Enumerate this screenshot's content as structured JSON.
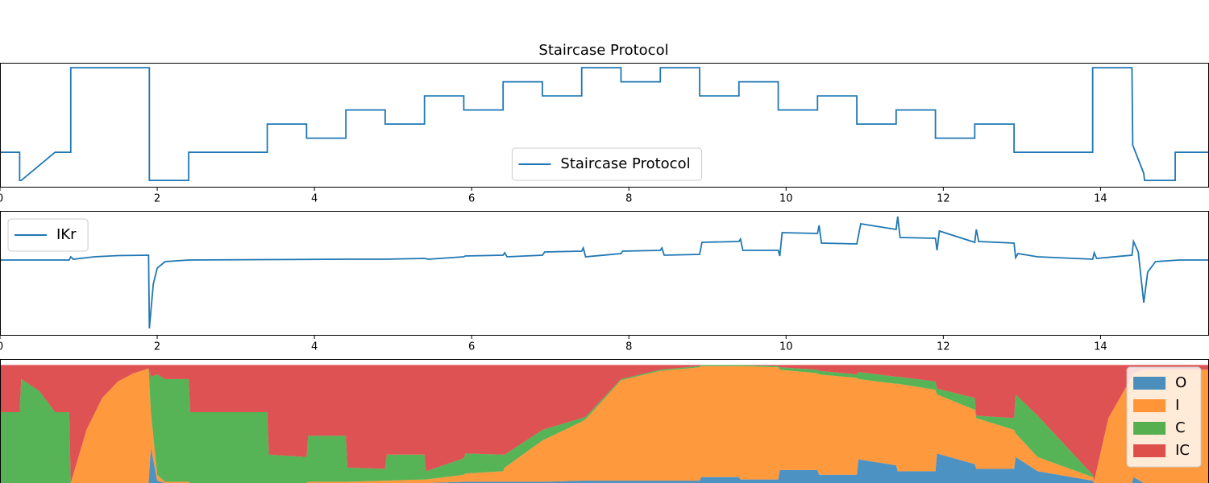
{
  "chart_data": [
    {
      "type": "line",
      "title": "Staircase Protocol",
      "legend": "lower center",
      "xlim": [
        0,
        15.38
      ],
      "ylim": [
        -129,
        47
      ],
      "xticks": [
        0,
        2,
        4,
        6,
        8,
        10,
        12,
        14
      ],
      "x": [
        0,
        0.25,
        0.25,
        0.27,
        0.7,
        0.9,
        0.9,
        1.9,
        1.9,
        2.4,
        2.4,
        3.4,
        3.4,
        3.9,
        3.9,
        4.4,
        4.4,
        4.9,
        4.9,
        5.4,
        5.4,
        5.9,
        5.9,
        6.4,
        6.4,
        6.9,
        6.9,
        7.4,
        7.4,
        7.9,
        7.9,
        8.4,
        8.4,
        8.9,
        8.9,
        9.4,
        9.4,
        9.9,
        9.9,
        10.4,
        10.4,
        10.9,
        10.9,
        11.4,
        11.4,
        11.9,
        11.9,
        12.4,
        12.4,
        12.9,
        12.9,
        13.9,
        13.9,
        14.4,
        14.41,
        14.55,
        14.56,
        14.95,
        14.95,
        15.38
      ],
      "series": [
        {
          "name": "Staircase Protocol",
          "color": "#1f77b4",
          "values": [
            -80,
            -80,
            -120,
            -120,
            -80,
            -80,
            40,
            40,
            -120,
            -120,
            -80,
            -80,
            -40,
            -40,
            -60,
            -60,
            -20,
            -20,
            -40,
            -40,
            0,
            0,
            -20,
            -20,
            20,
            20,
            0,
            0,
            40,
            40,
            20,
            20,
            40,
            40,
            0,
            0,
            20,
            20,
            -20,
            -20,
            0,
            0,
            -40,
            -40,
            -20,
            -20,
            -60,
            -60,
            -40,
            -40,
            -80,
            -80,
            40,
            40,
            -70,
            -110,
            -120,
            -120,
            -80,
            -80
          ]
        }
      ]
    },
    {
      "type": "line",
      "legend": "upper left",
      "xlim": [
        0,
        15.38
      ],
      "ylim": [
        -0.93,
        0.61
      ],
      "xticks": [
        0,
        2,
        4,
        6,
        8,
        10,
        12,
        14
      ],
      "x": [
        0,
        0.88,
        0.9,
        0.93,
        1.2,
        1.5,
        1.89,
        1.9,
        1.95,
        2.0,
        2.1,
        2.4,
        4.4,
        4.9,
        5.4,
        5.45,
        5.9,
        5.92,
        6.4,
        6.42,
        6.45,
        6.9,
        6.93,
        7.4,
        7.42,
        7.45,
        7.9,
        7.92,
        8.4,
        8.42,
        8.45,
        8.9,
        8.93,
        9.4,
        9.42,
        9.45,
        9.9,
        9.92,
        9.95,
        10.4,
        10.42,
        10.45,
        10.9,
        10.95,
        11.4,
        11.42,
        11.45,
        11.9,
        11.92,
        11.95,
        12.4,
        12.42,
        12.45,
        12.9,
        12.92,
        12.95,
        13.2,
        13.9,
        13.92,
        13.95,
        14.4,
        14.42,
        14.48,
        14.55,
        14.6,
        14.7,
        15.0,
        15.38
      ],
      "series": [
        {
          "name": "IKr",
          "color": "#1f77b4",
          "values": [
            0,
            0,
            0.04,
            0.01,
            0.04,
            0.055,
            0.06,
            -0.85,
            -0.3,
            -0.1,
            -0.02,
            0,
            0.01,
            0.01,
            0.02,
            0.01,
            0.04,
            0.05,
            0.06,
            0.09,
            0.04,
            0.06,
            0.1,
            0.11,
            0.15,
            0.04,
            0.08,
            0.11,
            0.12,
            0.15,
            0.06,
            0.07,
            0.22,
            0.23,
            0.26,
            0.12,
            0.12,
            0.05,
            0.34,
            0.33,
            0.43,
            0.21,
            0.2,
            0.45,
            0.38,
            0.54,
            0.28,
            0.27,
            0.12,
            0.36,
            0.22,
            0.38,
            0.23,
            0.21,
            0.03,
            0.08,
            0.04,
            0.01,
            0.09,
            0.02,
            0.06,
            0.23,
            0.1,
            -0.53,
            -0.15,
            -0.02,
            0,
            0
          ]
        }
      ]
    },
    {
      "type": "stackplot",
      "legend": "upper right",
      "alpha": 0.8,
      "xlim": [
        0,
        15.38
      ],
      "ylim": [
        0,
        1.05
      ],
      "x": [
        0,
        0.25,
        0.27,
        0.5,
        0.7,
        0.88,
        0.9,
        1.1,
        1.3,
        1.5,
        1.7,
        1.89,
        1.92,
        2.0,
        2.1,
        2.4,
        2.42,
        3.4,
        3.42,
        3.9,
        3.92,
        4.4,
        4.42,
        4.9,
        4.92,
        5.4,
        5.42,
        5.9,
        5.92,
        6.4,
        6.42,
        6.9,
        7.4,
        7.45,
        7.9,
        8.4,
        8.9,
        8.92,
        9.4,
        9.42,
        9.9,
        9.92,
        10.4,
        10.42,
        10.9,
        10.92,
        11.4,
        11.42,
        11.9,
        11.92,
        12.4,
        12.42,
        12.9,
        12.92,
        13.2,
        13.9,
        13.92,
        14.1,
        14.4,
        14.42,
        14.55,
        15.38
      ],
      "series": [
        {
          "name": "O",
          "color": "#1f77b4",
          "values": [
            0,
            0,
            0,
            0,
            0,
            0,
            0,
            0,
            0,
            0,
            0,
            0,
            0.3,
            0.02,
            0,
            0,
            0,
            0,
            0,
            0,
            0,
            0,
            0,
            0,
            0,
            0,
            0,
            0.01,
            0.01,
            0.01,
            0.01,
            0.01,
            0.02,
            0.02,
            0.02,
            0.02,
            0.02,
            0.05,
            0.05,
            0.03,
            0.03,
            0.11,
            0.11,
            0.07,
            0.07,
            0.2,
            0.15,
            0.1,
            0.1,
            0.25,
            0.16,
            0.12,
            0.12,
            0.22,
            0.1,
            0.02,
            0,
            0,
            0,
            0.05,
            0,
            0
          ]
        },
        {
          "name": "I",
          "color": "#ff7f0e",
          "values": [
            0,
            0,
            0,
            0,
            0,
            0,
            0,
            0.45,
            0.72,
            0.86,
            0.93,
            0.97,
            0.3,
            0.05,
            0.01,
            0.01,
            0,
            0,
            0,
            0,
            0.01,
            0.01,
            0.01,
            0.02,
            0.02,
            0.03,
            0.03,
            0.06,
            0.07,
            0.09,
            0.12,
            0.35,
            0.5,
            0.52,
            0.85,
            0.93,
            0.96,
            0.94,
            0.94,
            0.96,
            0.95,
            0.85,
            0.82,
            0.85,
            0.82,
            0.68,
            0.69,
            0.74,
            0.69,
            0.5,
            0.46,
            0.43,
            0.33,
            0.2,
            0.12,
            0.03,
            0.02,
            0.55,
            0.9,
            0.88,
            0.96,
            0.96
          ]
        },
        {
          "name": "C",
          "color": "#2ca02c",
          "values": [
            0.6,
            0.6,
            0.88,
            0.78,
            0.6,
            0.6,
            0,
            0,
            0,
            0,
            0,
            0,
            0.3,
            0.85,
            0.87,
            0.87,
            0.6,
            0.6,
            0.24,
            0.22,
            0.39,
            0.39,
            0.12,
            0.1,
            0.22,
            0.21,
            0.07,
            0.14,
            0.17,
            0.14,
            0.11,
            0.09,
            0.03,
            0.02,
            0.01,
            0.01,
            0.01,
            0.01,
            0.01,
            0.01,
            0.01,
            0.02,
            0.03,
            0.03,
            0.03,
            0.06,
            0.06,
            0.06,
            0.07,
            0.05,
            0.1,
            0.02,
            0.1,
            0.33,
            0.35,
            0.02,
            0,
            0,
            0,
            0,
            0,
            0
          ]
        },
        {
          "name": "IC",
          "color": "#d62728",
          "values": [
            0.4,
            0.4,
            0.12,
            0.22,
            0.4,
            0.4,
            1,
            0.55,
            0.28,
            0.14,
            0.07,
            0.03,
            0.1,
            0.08,
            0.12,
            0.12,
            0.4,
            0.4,
            0.76,
            0.78,
            0.6,
            0.6,
            0.87,
            0.88,
            0.76,
            0.76,
            0.9,
            0.79,
            0.75,
            0.76,
            0.76,
            0.55,
            0.45,
            0.44,
            0.12,
            0.04,
            0.01,
            0,
            0,
            0,
            0.01,
            0.02,
            0.04,
            0.05,
            0.08,
            0.06,
            0.1,
            0.1,
            0.14,
            0.2,
            0.28,
            0.43,
            0.45,
            0.25,
            0.43,
            0.93,
            0.98,
            0.45,
            0.1,
            0.07,
            0.04,
            0.04
          ]
        }
      ]
    }
  ]
}
